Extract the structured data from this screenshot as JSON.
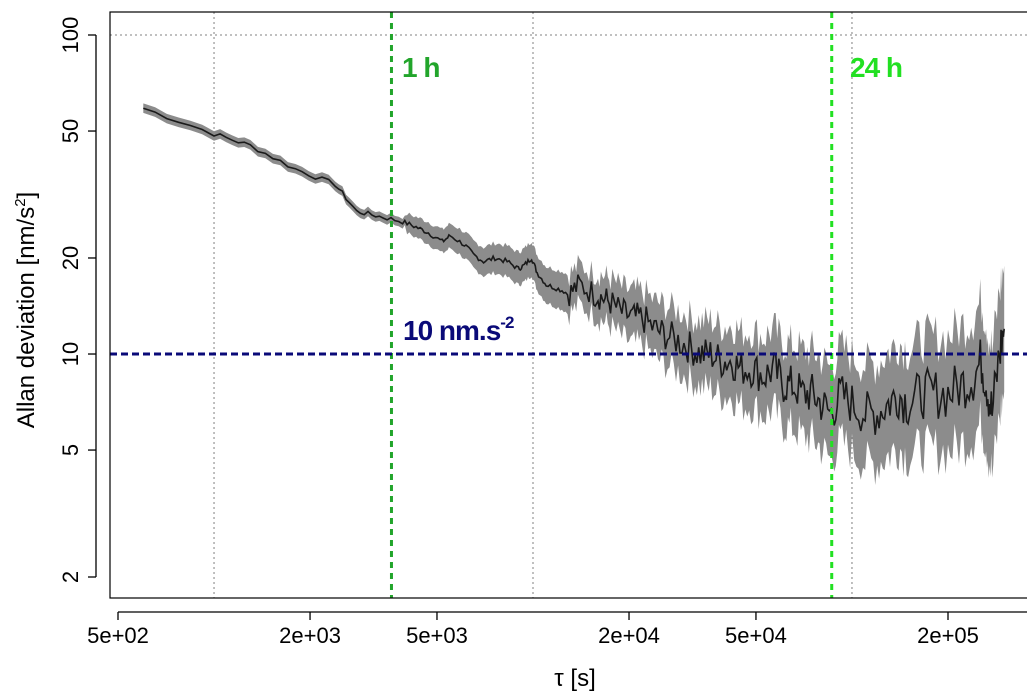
{
  "chart_data": {
    "type": "line",
    "xscale": "log",
    "yscale": "log",
    "xlabel": "τ [s]",
    "ylabel": "Allan deviation [nm/s",
    "ylabel_sup": "2",
    "ylabel_end": "]",
    "xlim": [
      400,
      300000
    ],
    "ylim": [
      1.85,
      118
    ],
    "x_ticks": [
      500,
      2000,
      5000,
      20000,
      50000,
      200000
    ],
    "x_tick_labels": [
      "5e+02",
      "2e+03",
      "5e+03",
      "2e+04",
      "5e+04",
      "2e+05"
    ],
    "y_ticks": [
      2,
      5,
      10,
      20,
      50,
      100
    ],
    "y_tick_labels": [
      "2",
      "5",
      "10",
      "20",
      "50",
      "100"
    ],
    "grid": {
      "x": [
        1000,
        10000,
        100000
      ],
      "y": [
        100
      ]
    },
    "colors": {
      "line": "#1a1a1a",
      "band": "#8c8c8c",
      "grid": "#808080",
      "one_hour": "#22a52b",
      "day": "#22e022",
      "threshold": "#0a0a78"
    },
    "series": [
      {
        "x": [
          600,
          1000,
          1300,
          1800,
          2400,
          2800,
          3300,
          3900,
          4300,
          4700,
          5200,
          5500,
          6100,
          6500,
          7000,
          7600,
          8300,
          9000,
          9400,
          9900,
          10300,
          11000,
          12000,
          13000,
          14000,
          15500,
          16500,
          17500,
          19000,
          20500,
          22000,
          24000,
          26000,
          28500,
          31000,
          33500,
          36000,
          39000,
          42000,
          45000,
          49000,
          53000,
          57000,
          61000,
          65000,
          70000,
          75000,
          80000,
          86000,
          92000,
          100000,
          110000,
          120000,
          130000,
          140000,
          150000,
          165000,
          180000,
          200000,
          220000,
          240000,
          255000,
          265000,
          275000,
          290000,
          300000
        ],
        "y": [
          59,
          49,
          45,
          38,
          34,
          28,
          27,
          26,
          25,
          24,
          22.5,
          23.5,
          22,
          20.5,
          19.5,
          20,
          19.5,
          18.5,
          19,
          20,
          18,
          16.5,
          16,
          15.5,
          16.5,
          15.5,
          15,
          14.5,
          13.5,
          13,
          13,
          12,
          11.5,
          11,
          10.5,
          10,
          10,
          9.5,
          9.5,
          9,
          9,
          8.5,
          9,
          8,
          8,
          7.5,
          7.5,
          7,
          6.5,
          7.5,
          7,
          6.5,
          6.5,
          7,
          7.5,
          7,
          7.5,
          7.5,
          7.5,
          8,
          8.5,
          9.5,
          8,
          6.5,
          10,
          12
        ]
      }
    ],
    "vlines": [
      {
        "x": 3600,
        "label": "1 h"
      },
      {
        "x": 86400,
        "label": "24 h"
      }
    ],
    "hline": {
      "y": 10,
      "label": "10 nm.s",
      "label_sup": "-2"
    }
  }
}
